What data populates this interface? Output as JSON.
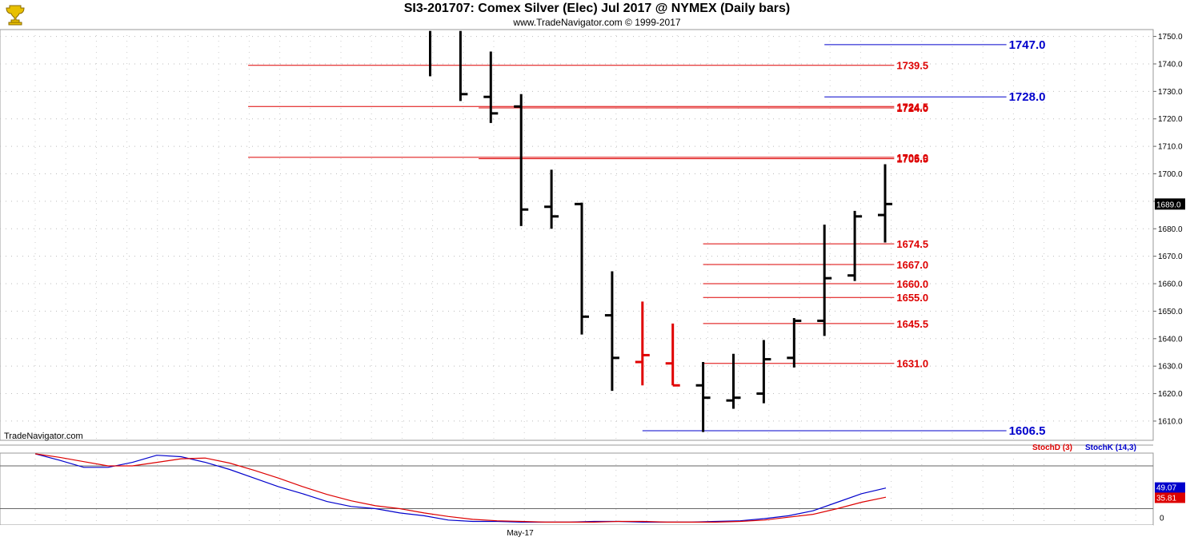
{
  "header": {
    "title": "SI3-201707:  Comex Silver (Elec) Jul 2017 @ NYMEX  (Daily bars)",
    "subtitle": "www.TradeNavigator.com © 1999-2017"
  },
  "watermark": "TradeNavigator.com",
  "logo_icon": "trophy-icon",
  "colors": {
    "bar": "#000000",
    "bar_highlight": "#e00000",
    "red_level": "#dd0000",
    "blue_level": "#0000cc",
    "stoch_d": "#dd0000",
    "stoch_k": "#0000cc"
  },
  "chart_data": [
    {
      "type": "ohlc",
      "y_ticks": [
        1610.0,
        1620.0,
        1630.0,
        1640.0,
        1650.0,
        1660.0,
        1670.0,
        1680.0,
        1690.0,
        1700.0,
        1710.0,
        1720.0,
        1730.0,
        1740.0,
        1750.0
      ],
      "ylim": [
        1603.0,
        1752.5
      ],
      "last_price": "1689.0",
      "bars": [
        {
          "o": null,
          "h": 1752,
          "l": 1735.5,
          "c": null,
          "color": "black"
        },
        {
          "o": null,
          "h": 1752,
          "l": 1726.5,
          "c": 1729.0,
          "color": "black"
        },
        {
          "o": 1728.0,
          "h": 1744.5,
          "l": 1718.5,
          "c": 1722.0,
          "color": "black"
        },
        {
          "o": 1724.5,
          "h": 1729.0,
          "l": 1681.0,
          "c": 1687.0,
          "color": "black"
        },
        {
          "o": 1688.0,
          "h": 1701.5,
          "l": 1680.0,
          "c": 1684.5,
          "color": "black"
        },
        {
          "o": 1689.0,
          "h": 1689.5,
          "l": 1641.5,
          "c": 1648.0,
          "color": "black"
        },
        {
          "o": 1648.5,
          "h": 1664.5,
          "l": 1621.0,
          "c": 1633.0,
          "color": "black"
        },
        {
          "o": 1631.5,
          "h": 1653.5,
          "l": 1623.0,
          "c": 1634.0,
          "color": "red"
        },
        {
          "o": 1631.0,
          "h": 1645.5,
          "l": 1623.0,
          "c": 1623.0,
          "color": "red"
        },
        {
          "o": 1623.0,
          "h": 1631.5,
          "l": 1606.0,
          "c": 1618.5,
          "color": "black"
        },
        {
          "o": 1617.5,
          "h": 1634.5,
          "l": 1614.5,
          "c": 1618.5,
          "color": "black"
        },
        {
          "o": 1620.0,
          "h": 1639.5,
          "l": 1616.5,
          "c": 1632.5,
          "color": "black"
        },
        {
          "o": 1633.0,
          "h": 1647.5,
          "l": 1629.5,
          "c": 1646.5,
          "color": "black"
        },
        {
          "o": 1646.5,
          "h": 1681.5,
          "l": 1641.0,
          "c": 1662.0,
          "color": "black"
        },
        {
          "o": 1663.0,
          "h": 1686.5,
          "l": 1661.0,
          "c": 1684.5,
          "color": "black"
        },
        {
          "o": 1685.0,
          "h": 1703.5,
          "l": 1675.0,
          "c": 1689.0,
          "color": "black"
        }
      ],
      "levels": [
        {
          "label": "1747.0",
          "value": 1747.0,
          "color": "blue",
          "from_bar": 13.0,
          "to_bar": 19.0
        },
        {
          "label": "1739.5",
          "value": 1739.5,
          "color": "red",
          "from_bar": -6.0,
          "to_bar": 15.3
        },
        {
          "label": "1728.0",
          "value": 1728.0,
          "color": "blue",
          "from_bar": 13.0,
          "to_bar": 19.0
        },
        {
          "label": "1724.5",
          "value": 1724.5,
          "color": "red",
          "from_bar": -6.0,
          "to_bar": 15.3
        },
        {
          "label": "1724.0",
          "value": 1724.0,
          "color": "red",
          "from_bar": 1.6,
          "to_bar": 15.3
        },
        {
          "label": "1706.0",
          "value": 1706.0,
          "color": "red",
          "from_bar": -6.0,
          "to_bar": 15.3
        },
        {
          "label": "1705.5",
          "value": 1705.5,
          "color": "red",
          "from_bar": 1.6,
          "to_bar": 15.3
        },
        {
          "label": "1674.5",
          "value": 1674.5,
          "color": "red",
          "from_bar": 9.0,
          "to_bar": 15.3
        },
        {
          "label": "1667.0",
          "value": 1667.0,
          "color": "red",
          "from_bar": 9.0,
          "to_bar": 15.3
        },
        {
          "label": "1660.0",
          "value": 1660.0,
          "color": "red",
          "from_bar": 9.0,
          "to_bar": 15.3
        },
        {
          "label": "1655.0",
          "value": 1655.0,
          "color": "red",
          "from_bar": 9.0,
          "to_bar": 15.3
        },
        {
          "label": "1645.5",
          "value": 1645.5,
          "color": "red",
          "from_bar": 9.0,
          "to_bar": 15.3
        },
        {
          "label": "1631.0",
          "value": 1631.0,
          "color": "red",
          "from_bar": 9.0,
          "to_bar": 15.3
        },
        {
          "label": "1606.5",
          "value": 1606.5,
          "color": "blue",
          "from_bar": 7.0,
          "to_bar": 19.0
        }
      ]
    },
    {
      "type": "line",
      "legend": [
        "StochD (3)",
        "StochK (14,3)"
      ],
      "y_ticks": [
        0
      ],
      "ylim": [
        -3,
        98
      ],
      "reference_lines": [
        20,
        80
      ],
      "last_values": {
        "stoch_k": "49.07",
        "stoch_d": "35.81"
      },
      "x_label": "May-17",
      "series": [
        {
          "name": "StochK (14,3)",
          "color": "blue",
          "values": [
            97,
            88,
            78,
            78,
            85,
            95,
            93,
            85,
            75,
            63,
            51,
            41,
            30,
            23,
            20,
            14,
            10,
            4,
            2,
            2,
            1,
            1,
            1,
            2,
            2,
            1,
            1,
            1,
            2,
            3,
            6,
            10,
            17,
            29,
            41,
            49
          ]
        },
        {
          "name": "StochD (3)",
          "color": "red",
          "values": [
            97,
            92,
            86,
            80,
            80,
            85,
            90,
            91,
            84,
            74,
            63,
            51,
            40,
            31,
            24,
            20,
            14,
            9,
            5,
            3,
            2,
            1,
            1,
            1,
            2,
            2,
            1,
            1,
            1,
            2,
            4,
            8,
            12,
            20,
            29,
            36
          ]
        }
      ]
    }
  ]
}
